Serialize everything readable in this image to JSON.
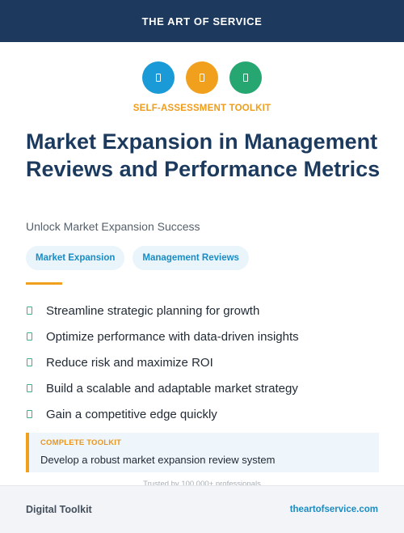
{
  "header": {
    "brand": "THE ART OF SERVICE"
  },
  "icons": [
    {
      "name": "tool-icon",
      "color": "#1a9ad6"
    },
    {
      "name": "tool-icon",
      "color": "#f0a01c"
    },
    {
      "name": "tool-icon",
      "color": "#26a671"
    }
  ],
  "eyebrow": {
    "text": "SELF-ASSESSMENT TOOLKIT",
    "color": "#ef9d1a"
  },
  "title": "Market Expansion in Management Reviews and Performance Metrics",
  "subtitle": "Unlock Market Expansion Success",
  "tags": [
    {
      "label": "Market Expansion"
    },
    {
      "label": "Management Reviews"
    }
  ],
  "benefits": [
    {
      "text": "Streamline strategic planning for growth"
    },
    {
      "text": "Optimize performance with data-driven insights"
    },
    {
      "text": "Reduce risk and maximize ROI"
    },
    {
      "text": "Build a scalable and adaptable market strategy"
    },
    {
      "text": "Gain a competitive edge quickly"
    }
  ],
  "callout": {
    "label": "COMPLETE TOOLKIT",
    "text": "Develop a robust market expansion review system"
  },
  "trusted": "Trusted by 100,000+ professionals",
  "footer": {
    "left": "Digital Toolkit",
    "right": "theartofservice.com"
  }
}
